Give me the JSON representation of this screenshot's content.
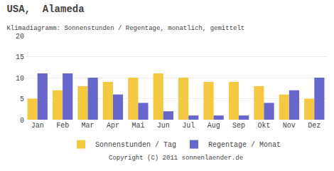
{
  "chart_data": {
    "type": "bar",
    "title": "USA,  Alameda",
    "subtitle": "Klimadiagramm: Sonnenstunden / Regentage, monatlich, gemittelt",
    "categories": [
      "Jan",
      "Feb",
      "Mar",
      "Apr",
      "Mai",
      "Jun",
      "Jul",
      "Aug",
      "Sep",
      "Okt",
      "Nov",
      "Dez"
    ],
    "series": [
      {
        "name": "Sonnenstunden / Tag",
        "color": "#F5C842",
        "values": [
          5,
          7,
          8,
          9,
          10,
          11,
          10,
          9,
          9,
          8,
          6,
          5
        ]
      },
      {
        "name": "Regentage / Monat",
        "color": "#6666CC",
        "values": [
          11,
          11,
          10,
          6,
          4,
          2,
          1,
          1,
          1,
          4,
          7,
          10
        ]
      }
    ],
    "ylim": [
      0,
      20
    ],
    "yticks": [
      0,
      5,
      10,
      15,
      20
    ],
    "grid": true,
    "legend": "bottom",
    "annotations": [
      "Copyright (C) 2011 sonnenlaender.de"
    ]
  }
}
